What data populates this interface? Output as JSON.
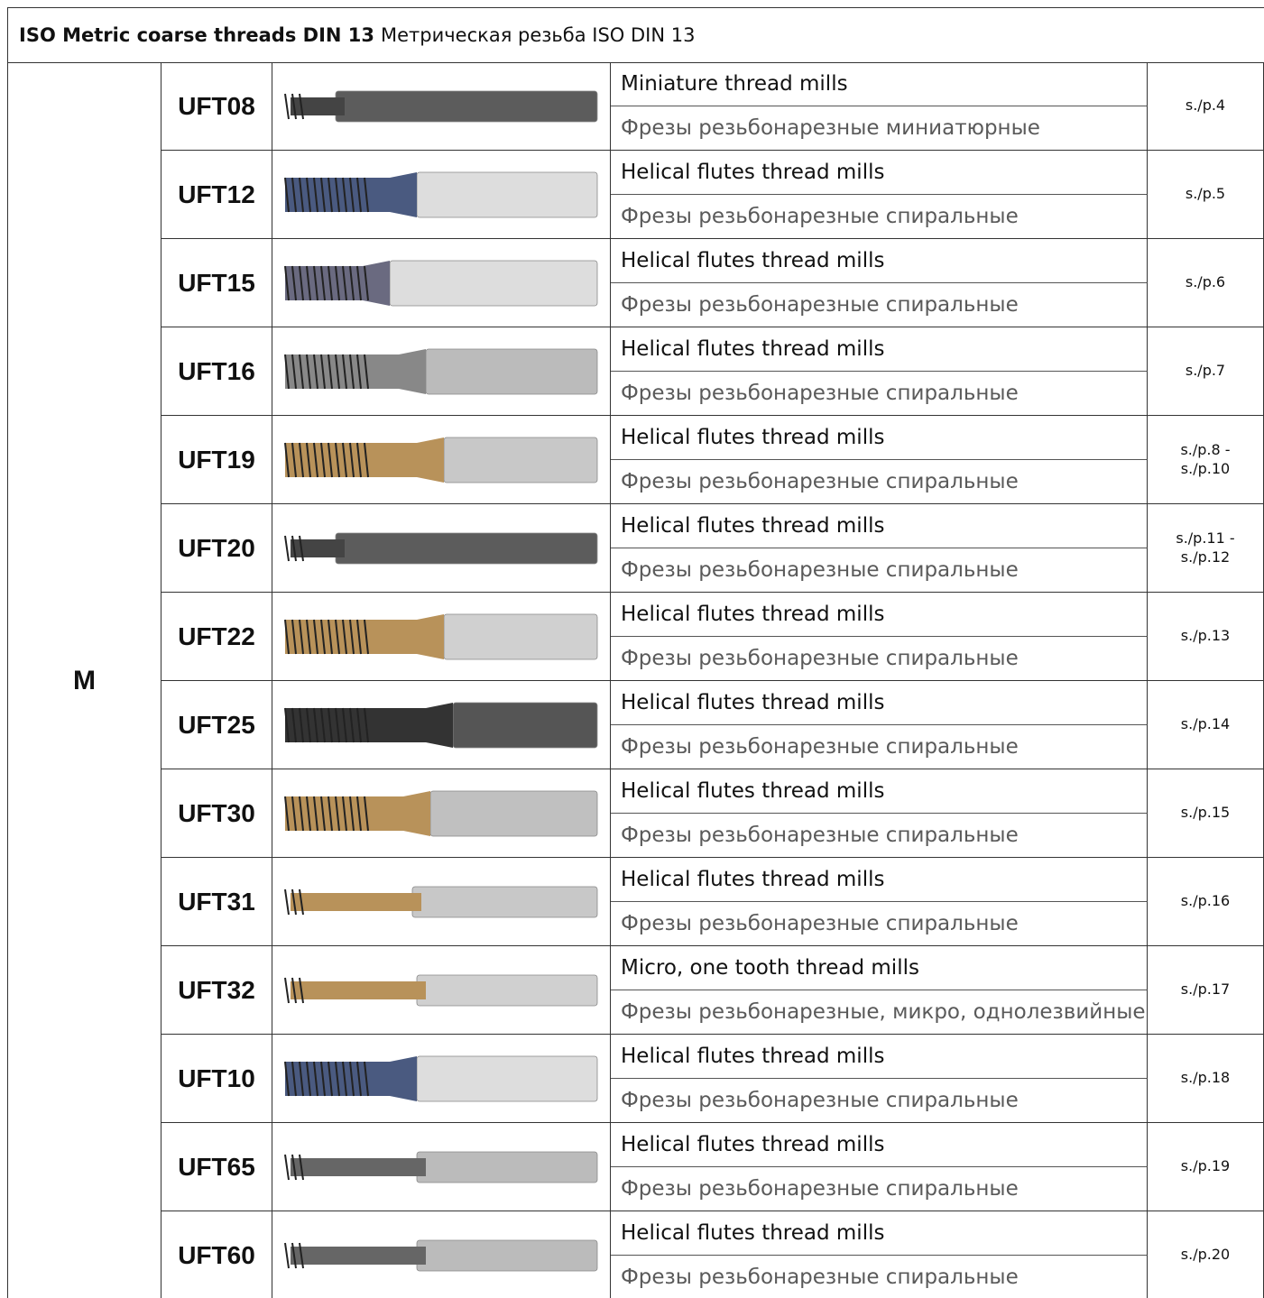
{
  "header": {
    "title_bold": "ISO Metric coarse threads DIN 13",
    "title_regular": "Метрическая резьба ISO DIN 13"
  },
  "table": {
    "group": "M",
    "rows": [
      {
        "code": "UFT08",
        "name_en": "Miniature thread mills",
        "name_ru": "Фрезы резьбонарезные миниатюрные",
        "page": "s./p.4"
      },
      {
        "code": "UFT12",
        "name_en": "Helical flutes thread mills",
        "name_ru": "Фрезы резьбонарезные спиральные",
        "page": "s./p.5"
      },
      {
        "code": "UFT15",
        "name_en": "Helical flutes thread mills",
        "name_ru": "Фрезы резьбонарезные спиральные",
        "page": "s./p.6"
      },
      {
        "code": "UFT16",
        "name_en": "Helical flutes thread mills",
        "name_ru": "Фрезы резьбонарезные спиральные",
        "page": "s./p.7"
      },
      {
        "code": "UFT19",
        "name_en": "Helical flutes thread mills",
        "name_ru": "Фрезы резьбонарезные спиральные",
        "page": "s./p.8 - s./p.10"
      },
      {
        "code": "UFT20",
        "name_en": "Helical flutes thread mills",
        "name_ru": "Фрезы резьбонарезные спиральные",
        "page": "s./p.11 - s./p.12"
      },
      {
        "code": "UFT22",
        "name_en": "Helical flutes thread mills",
        "name_ru": "Фрезы резьбонарезные спиральные",
        "page": "s./p.13"
      },
      {
        "code": "UFT25",
        "name_en": "Helical flutes thread mills",
        "name_ru": "Фрезы резьбонарезные спиральные",
        "page": "s./p.14"
      },
      {
        "code": "UFT30",
        "name_en": "Helical flutes thread mills",
        "name_ru": "Фрезы резьбонарезные спиральные",
        "page": "s./p.15"
      },
      {
        "code": "UFT31",
        "name_en": "Helical flutes thread mills",
        "name_ru": "Фрезы резьбонарезные спиральные",
        "page": "s./p.16"
      },
      {
        "code": "UFT32",
        "name_en": "Micro, one tooth thread mills",
        "name_ru": "Фрезы резьбонарезные, микро, однолезвийные",
        "page": "s./p.17"
      },
      {
        "code": "UFT10",
        "name_en": "Helical flutes thread mills",
        "name_ru": "Фрезы резьбонарезные спиральные",
        "page": "s./p.18"
      },
      {
        "code": "UFT65",
        "name_en": "Helical flutes thread mills",
        "name_ru": "Фрезы резьбонарезные спиральные",
        "page": "s./p.19"
      },
      {
        "code": "UFT60",
        "name_en": "Helical flutes thread mills",
        "name_ru": "Фрезы резьбонарезные спиральные",
        "page": "s./p.20"
      }
    ]
  }
}
